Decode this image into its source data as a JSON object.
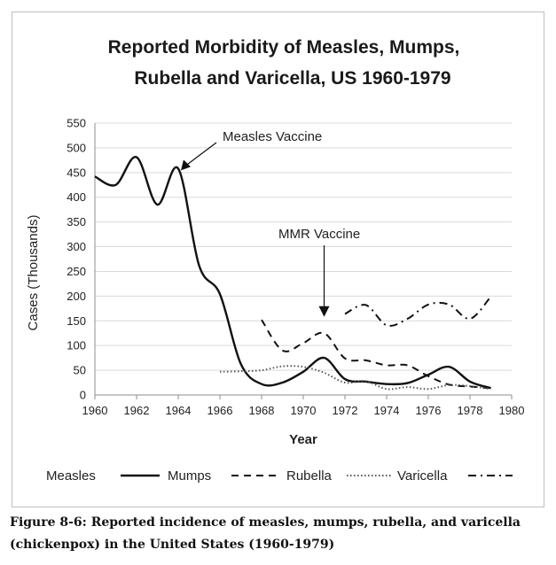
{
  "chart_data": {
    "type": "line",
    "title_lines": [
      "Reported Morbidity of Measles, Mumps,",
      "Rubella and Varicella, US 1960-1979"
    ],
    "xlabel": "Year",
    "ylabel": "Cases (Thousands)",
    "xlim": [
      1960,
      1980
    ],
    "ylim": [
      0,
      550
    ],
    "xticks": [
      "1960",
      "1962",
      "1964",
      "1966",
      "1968",
      "1970",
      "1972",
      "1974",
      "1976",
      "1978",
      "1980"
    ],
    "yticks": [
      "0",
      "50",
      "100",
      "150",
      "200",
      "250",
      "300",
      "350",
      "400",
      "450",
      "500",
      "550"
    ],
    "grid": "horizontal",
    "legend_position": "bottom",
    "series": [
      {
        "name": "Measles",
        "style": "solid",
        "x": [
          1960,
          1961,
          1962,
          1963,
          1964,
          1965,
          1966,
          1967,
          1968,
          1969,
          1970,
          1971,
          1972,
          1973,
          1974,
          1975,
          1976,
          1977,
          1978,
          1979
        ],
        "y": [
          442,
          425,
          481,
          385,
          458,
          262,
          204,
          63,
          22,
          25,
          47,
          75,
          32,
          27,
          22,
          24,
          41,
          57,
          27,
          14
        ]
      },
      {
        "name": "Mumps",
        "style": "dashed",
        "x": [
          1968,
          1969,
          1970,
          1971,
          1972,
          1973,
          1974,
          1975,
          1976,
          1977,
          1978,
          1979
        ],
        "y": [
          152,
          90,
          105,
          125,
          74,
          70,
          60,
          60,
          38,
          21,
          17,
          14
        ]
      },
      {
        "name": "Rubella",
        "style": "dotted",
        "x": [
          1966,
          1967,
          1968,
          1969,
          1970,
          1971,
          1972,
          1973,
          1974,
          1975,
          1976,
          1977,
          1978,
          1979
        ],
        "y": [
          47,
          48,
          50,
          58,
          57,
          45,
          25,
          28,
          12,
          16,
          12,
          20,
          18,
          12
        ]
      },
      {
        "name": "Varicella",
        "style": "dash-dot",
        "x": [
          1972,
          1973,
          1974,
          1975,
          1976,
          1977,
          1978,
          1979
        ],
        "y": [
          164,
          182,
          141,
          154,
          183,
          183,
          154,
          199
        ]
      }
    ],
    "annotations": [
      {
        "text": "Measles Vaccine",
        "x": 1964,
        "y": 458
      },
      {
        "text": "MMR Vaccine",
        "x": 1971,
        "y": 158
      }
    ]
  },
  "caption": "Figure 8-6: Reported incidence of measles, mumps, rubella, and varicella (chickenpox) in the United States (1960-1979)"
}
